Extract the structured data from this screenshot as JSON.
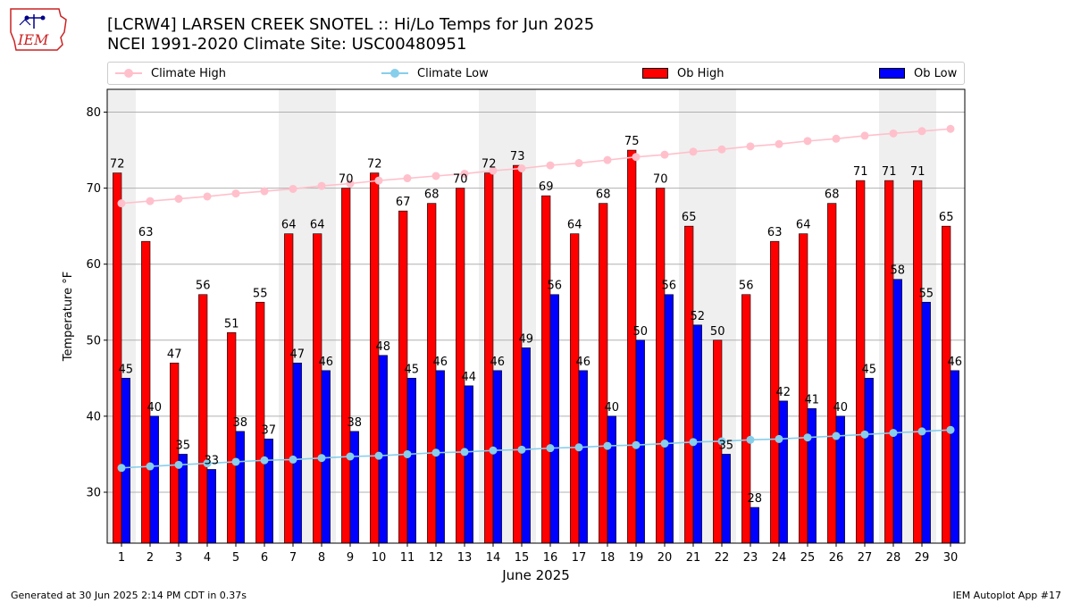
{
  "header": {
    "logo_text": "IEM",
    "title_line1": "[LCRW4] LARSEN CREEK SNOTEL :: Hi/Lo Temps for Jun 2025",
    "title_line2": "NCEI 1991-2020 Climate Site: USC00480951"
  },
  "legend": {
    "climate_high": "Climate High",
    "climate_low": "Climate Low",
    "ob_high": "Ob High",
    "ob_low": "Ob Low"
  },
  "footer": {
    "generated": "Generated at 30 Jun 2025 2:14 PM CDT in 0.37s",
    "app": "IEM Autoplot App #17"
  },
  "colors": {
    "ob_high": "#ff0000",
    "ob_low": "#0000ff",
    "climate_high": "#ffc0cb",
    "climate_low": "#87ceeb",
    "weekend_band": "#efefef",
    "grid": "#b0b0b0"
  },
  "chart_data": {
    "type": "bar",
    "xlabel": "June 2025",
    "ylabel": "Temperature °F",
    "ylim": [
      23.3,
      83
    ],
    "yticks": [
      30,
      40,
      50,
      60,
      70,
      80
    ],
    "grid": "horizontal",
    "legend_position": "top",
    "categories": [
      "1",
      "2",
      "3",
      "4",
      "5",
      "6",
      "7",
      "8",
      "9",
      "10",
      "11",
      "12",
      "13",
      "14",
      "15",
      "16",
      "17",
      "18",
      "19",
      "20",
      "21",
      "22",
      "23",
      "24",
      "25",
      "26",
      "27",
      "28",
      "29",
      "30"
    ],
    "weekend_days": [
      1,
      7,
      8,
      14,
      15,
      21,
      22,
      28,
      29
    ],
    "series": [
      {
        "name": "Ob High",
        "kind": "bar",
        "values": [
          72,
          63,
          47,
          56,
          51,
          55,
          64,
          64,
          70,
          72,
          67,
          68,
          70,
          72,
          73,
          69,
          64,
          68,
          75,
          70,
          65,
          50,
          56,
          63,
          64,
          68,
          71,
          71,
          71,
          65
        ]
      },
      {
        "name": "Ob Low",
        "kind": "bar",
        "values": [
          45,
          40,
          35,
          33,
          38,
          37,
          47,
          46,
          38,
          48,
          45,
          46,
          44,
          46,
          49,
          56,
          46,
          40,
          50,
          56,
          52,
          35,
          28,
          42,
          41,
          40,
          45,
          58,
          55,
          46
        ]
      },
      {
        "name": "Climate High",
        "kind": "line",
        "values": [
          68.0,
          68.3,
          68.6,
          68.9,
          69.3,
          69.6,
          69.9,
          70.3,
          70.6,
          71.0,
          71.3,
          71.6,
          71.9,
          72.3,
          72.6,
          73.0,
          73.3,
          73.7,
          74.1,
          74.4,
          74.8,
          75.1,
          75.5,
          75.8,
          76.2,
          76.5,
          76.9,
          77.2,
          77.5,
          77.8
        ]
      },
      {
        "name": "Climate Low",
        "kind": "line",
        "values": [
          33.2,
          33.4,
          33.6,
          33.8,
          34.0,
          34.2,
          34.3,
          34.5,
          34.7,
          34.8,
          35.0,
          35.2,
          35.3,
          35.5,
          35.6,
          35.8,
          35.9,
          36.1,
          36.2,
          36.4,
          36.6,
          36.7,
          36.9,
          37.0,
          37.2,
          37.4,
          37.6,
          37.8,
          38.0,
          38.2
        ]
      }
    ]
  }
}
